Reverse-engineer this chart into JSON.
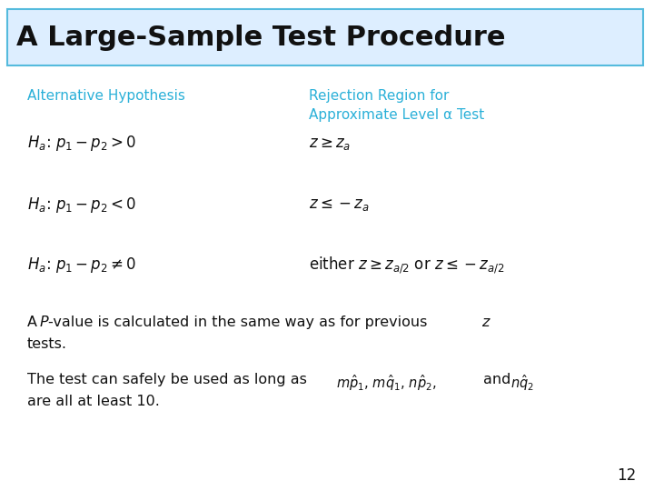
{
  "title": "A Large-Sample Test Procedure",
  "title_bg_color": "#ddeeff",
  "title_border_color": "#55bbdd",
  "title_text_color": "#111111",
  "header_color": "#2ab0d8",
  "body_text_color": "#111111",
  "bg_color": "#ffffff",
  "col1_header": "Alternative Hypothesis",
  "col2_header": "Rejection Region for\nApproximate Level α Test",
  "page_num": "12"
}
